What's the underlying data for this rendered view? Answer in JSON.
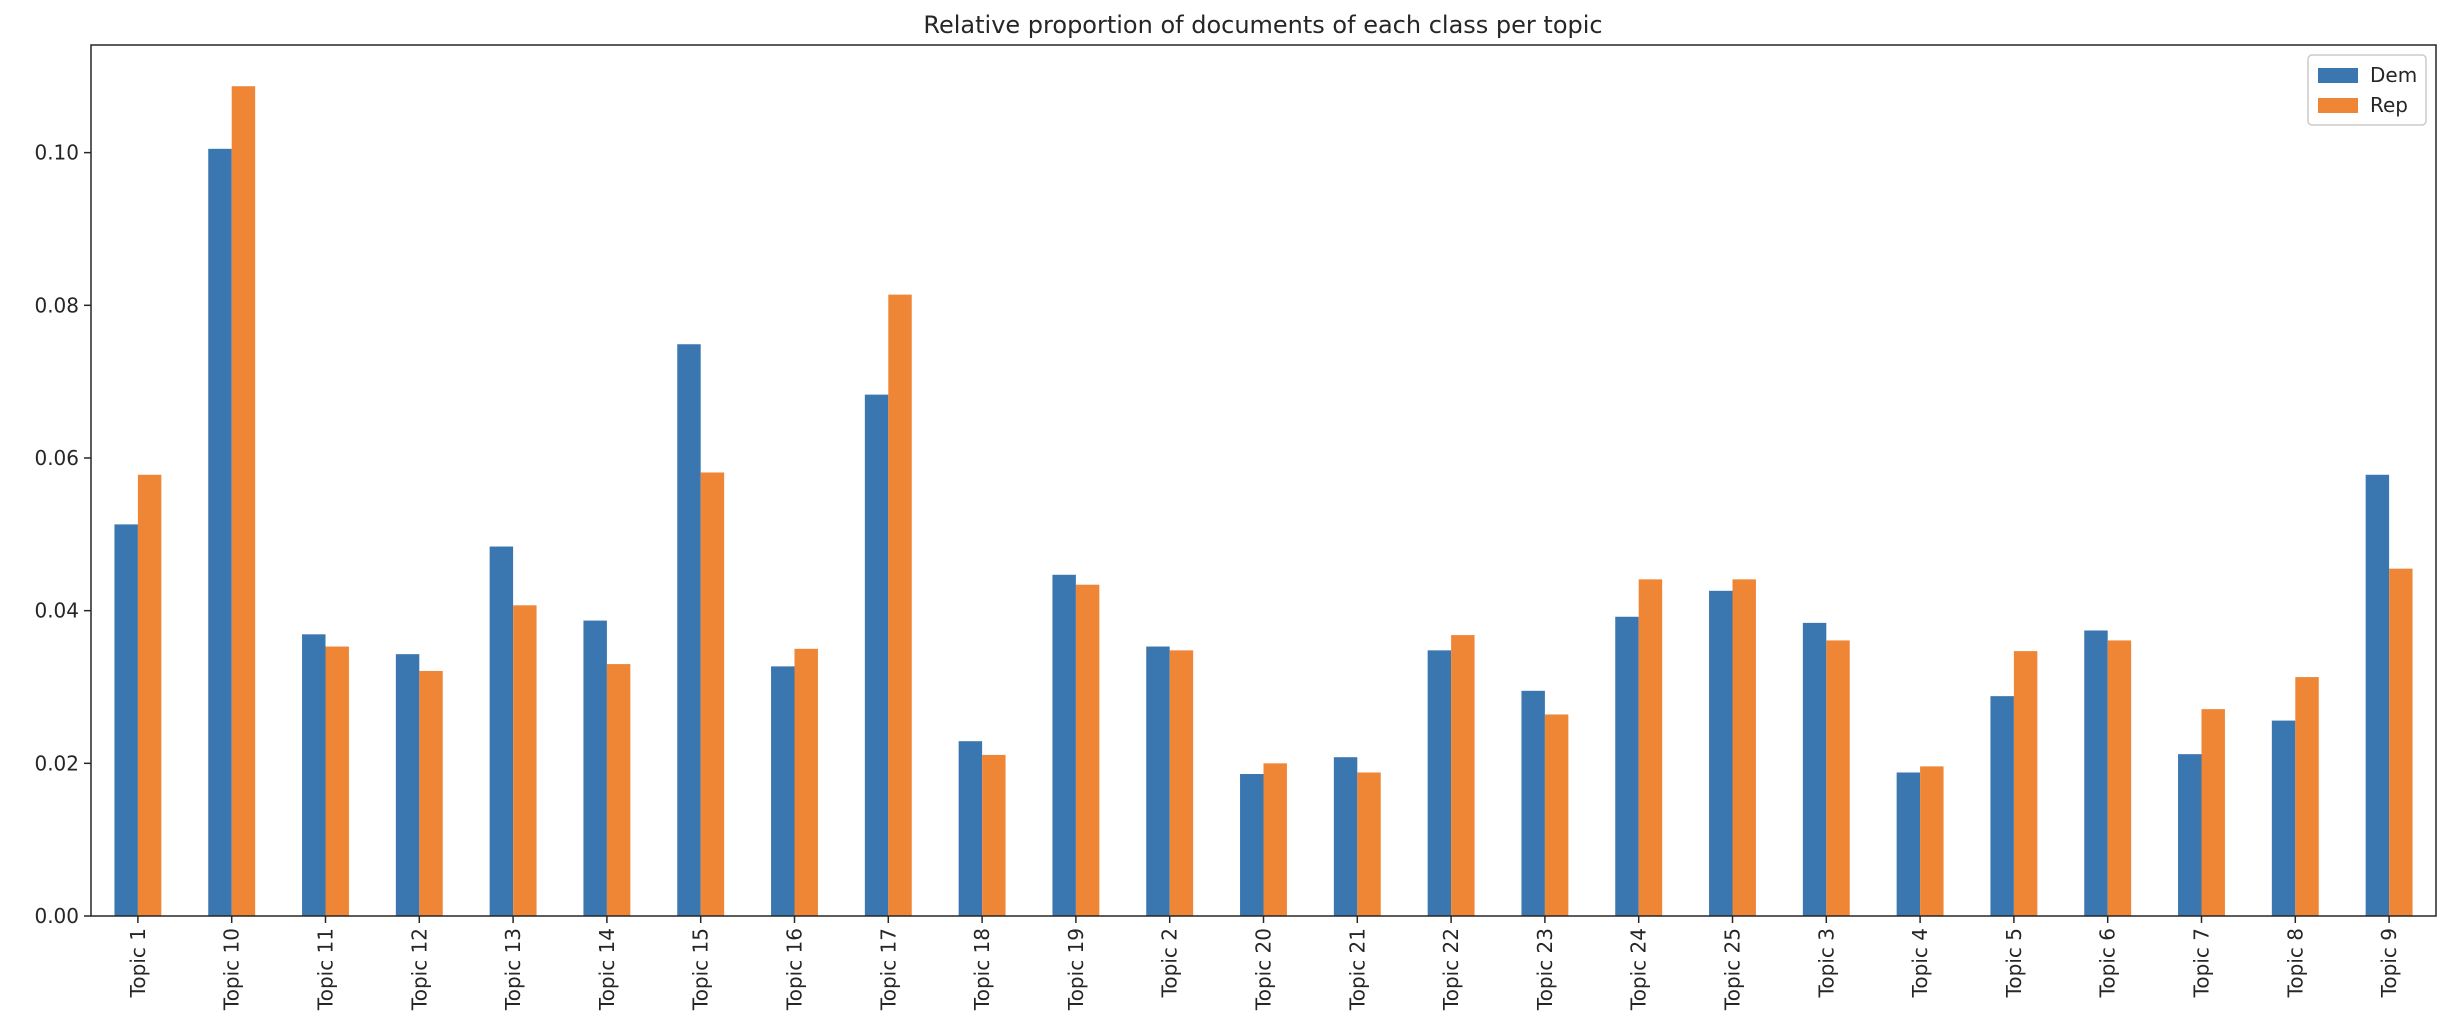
{
  "chart_data": {
    "type": "bar",
    "title": "Relative proportion of documents of each class per topic",
    "xlabel": "",
    "ylabel": "",
    "categories": [
      "Topic 1",
      "Topic 10",
      "Topic 11",
      "Topic 12",
      "Topic 13",
      "Topic 14",
      "Topic 15",
      "Topic 16",
      "Topic 17",
      "Topic 18",
      "Topic 19",
      "Topic 2",
      "Topic 20",
      "Topic 21",
      "Topic 22",
      "Topic 23",
      "Topic 24",
      "Topic 25",
      "Topic 3",
      "Topic 4",
      "Topic 5",
      "Topic 6",
      "Topic 7",
      "Topic 8",
      "Topic 9"
    ],
    "series": [
      {
        "name": "Dem",
        "color": "#3a76af",
        "values": [
          0.0513,
          0.1005,
          0.0369,
          0.0343,
          0.0484,
          0.0387,
          0.0749,
          0.0327,
          0.0683,
          0.0229,
          0.0447,
          0.0353,
          0.0186,
          0.0208,
          0.0348,
          0.0295,
          0.0392,
          0.0426,
          0.0384,
          0.0188,
          0.0288,
          0.0374,
          0.0212,
          0.0256,
          0.0578
        ]
      },
      {
        "name": "Rep",
        "color": "#ef8636",
        "values": [
          0.0578,
          0.1087,
          0.0353,
          0.0321,
          0.0407,
          0.033,
          0.0581,
          0.035,
          0.0814,
          0.0211,
          0.0434,
          0.0348,
          0.02,
          0.0188,
          0.0368,
          0.0264,
          0.0441,
          0.0441,
          0.0361,
          0.0196,
          0.0347,
          0.0361,
          0.0271,
          0.0313,
          0.0455
        ]
      }
    ],
    "ylim": [
      0,
      0.1141
    ],
    "yticks": [
      0.0,
      0.02,
      0.04,
      0.06,
      0.08,
      0.1
    ],
    "ytick_labels": [
      "0.00",
      "0.02",
      "0.04",
      "0.06",
      "0.08",
      "0.10"
    ],
    "grid": false,
    "legend_position": "top-right",
    "axis_color": "#262626",
    "background": "#ffffff"
  }
}
